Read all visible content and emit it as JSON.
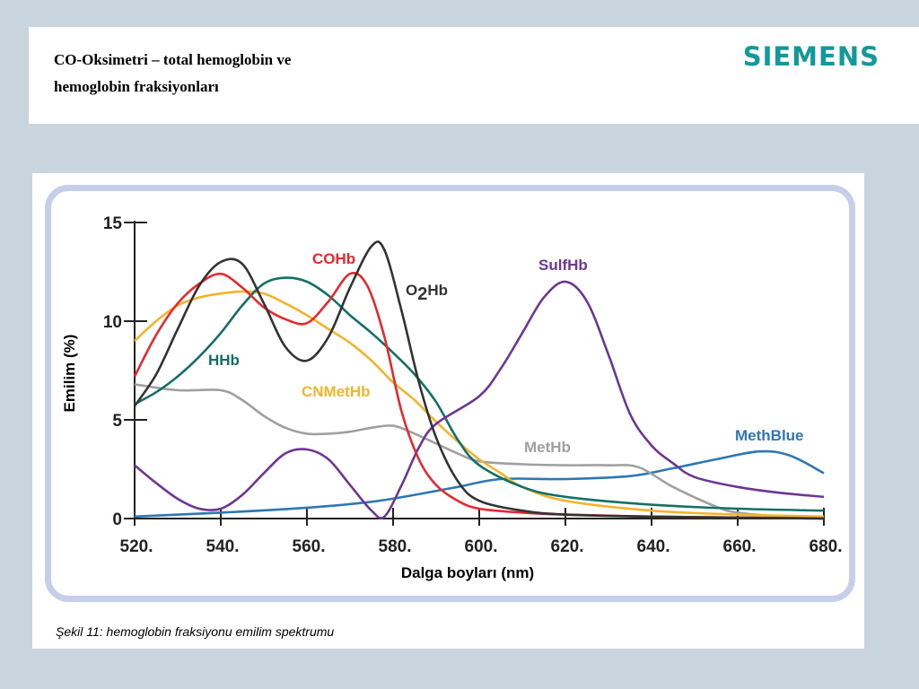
{
  "header": {
    "title_line1": "CO-Oksimetri – total hemoglobin ve",
    "title_line2": "hemoglobin fraksiyonları",
    "logo": "SIEMENS"
  },
  "caption": "Şekil 11: hemoglobin fraksiyonu emilim spektrumu",
  "colors": {
    "logo": "#12999a",
    "background": "#c9d5de",
    "frame": "#c5cfea"
  },
  "chart_data": {
    "type": "line",
    "title": "",
    "xlabel": "Dalga boyları (nm)",
    "ylabel": "Emilim (%)",
    "xlim": [
      520,
      680
    ],
    "ylim": [
      0,
      15
    ],
    "grid": false,
    "x_ticks": [
      520,
      540,
      560,
      580,
      600,
      620,
      640,
      660,
      680
    ],
    "x_tick_labels": [
      "520.",
      "540.",
      "560.",
      "580.",
      "600.",
      "620.",
      "640.",
      "660.",
      "680."
    ],
    "y_ticks": [
      0,
      5,
      10,
      15
    ],
    "y_tick_labels": [
      "0",
      "5",
      "10",
      "15"
    ],
    "series": [
      {
        "name": "COHb",
        "color": "#e8282c",
        "x": [
          520,
          525,
          530,
          535,
          540,
          545,
          550,
          555,
          560,
          565,
          570,
          574,
          578,
          582,
          586,
          590,
          595,
          600,
          610,
          620,
          640,
          660,
          680
        ],
        "y": [
          7.2,
          9.3,
          10.9,
          11.9,
          12.4,
          11.7,
          10.7,
          10.1,
          9.9,
          11.0,
          12.4,
          11.8,
          9.2,
          5.4,
          3.0,
          1.7,
          0.9,
          0.5,
          0.3,
          0.2,
          0.1,
          0.05,
          0
        ]
      },
      {
        "name": "O2Hb",
        "color": "#333333",
        "x": [
          520,
          525,
          530,
          535,
          540,
          545,
          550,
          555,
          560,
          565,
          570,
          575,
          578,
          582,
          586,
          590,
          595,
          600,
          610,
          620,
          640,
          660,
          680
        ],
        "y": [
          5.7,
          7.3,
          9.6,
          11.8,
          13.0,
          12.9,
          10.9,
          8.7,
          8.0,
          9.2,
          11.7,
          13.8,
          13.6,
          10.5,
          6.9,
          4.1,
          1.9,
          0.9,
          0.4,
          0.2,
          0.1,
          0.05,
          0
        ]
      },
      {
        "name": "HHb",
        "color": "#137068",
        "x": [
          520,
          525,
          530,
          535,
          540,
          545,
          550,
          555,
          560,
          565,
          570,
          575,
          580,
          585,
          590,
          595,
          600,
          610,
          620,
          640,
          660,
          680
        ],
        "y": [
          5.8,
          6.4,
          7.2,
          8.2,
          9.4,
          10.8,
          11.9,
          12.2,
          12.0,
          11.3,
          10.3,
          9.4,
          8.4,
          7.3,
          5.9,
          4.0,
          2.7,
          1.6,
          1.1,
          0.7,
          0.5,
          0.4
        ]
      },
      {
        "name": "CNMetHb",
        "color": "#f3b42b",
        "x": [
          520,
          525,
          530,
          535,
          540,
          545,
          550,
          555,
          560,
          565,
          570,
          575,
          580,
          585,
          590,
          595,
          600,
          605,
          610,
          620,
          640,
          660,
          680
        ],
        "y": [
          9.0,
          10.0,
          10.8,
          11.2,
          11.4,
          11.5,
          11.4,
          10.9,
          10.3,
          9.6,
          8.9,
          8.0,
          6.9,
          6.0,
          4.9,
          3.9,
          3.0,
          2.3,
          1.6,
          0.9,
          0.4,
          0.2,
          0.1
        ]
      },
      {
        "name": "MetHb",
        "color": "#a0a0a0",
        "x": [
          520,
          530,
          540,
          545,
          550,
          555,
          560,
          565,
          570,
          575,
          580,
          585,
          590,
          595,
          600,
          610,
          620,
          630,
          637,
          645,
          655,
          660,
          670,
          680
        ],
        "y": [
          6.8,
          6.5,
          6.5,
          6.0,
          5.2,
          4.6,
          4.3,
          4.3,
          4.4,
          4.6,
          4.7,
          4.3,
          3.8,
          3.3,
          2.9,
          2.75,
          2.7,
          2.7,
          2.6,
          1.6,
          0.6,
          0.3,
          0.1,
          0
        ]
      },
      {
        "name": "SulfHb",
        "color": "#6e3595",
        "x": [
          520,
          525,
          530,
          535,
          540,
          545,
          550,
          555,
          560,
          565,
          570,
          575,
          578,
          582,
          586,
          590,
          600,
          605,
          610,
          615,
          620,
          625,
          630,
          635,
          640,
          645,
          650,
          660,
          670,
          680
        ],
        "y": [
          2.7,
          1.8,
          1.0,
          0.5,
          0.5,
          1.2,
          2.3,
          3.3,
          3.5,
          3.0,
          1.7,
          0.4,
          0.1,
          1.7,
          3.6,
          4.8,
          6.2,
          7.6,
          9.4,
          11.2,
          12.0,
          11.0,
          8.3,
          5.3,
          3.7,
          2.8,
          2.1,
          1.6,
          1.3,
          1.1
        ]
      },
      {
        "name": "MethBlue",
        "color": "#2c77b4",
        "x": [
          520,
          540,
          560,
          575,
          585,
          595,
          605,
          620,
          635,
          645,
          655,
          665,
          672,
          680
        ],
        "y": [
          0.1,
          0.3,
          0.55,
          0.85,
          1.2,
          1.6,
          2.0,
          2.0,
          2.15,
          2.55,
          3.0,
          3.4,
          3.2,
          2.3
        ]
      }
    ],
    "series_labels": [
      "COHb",
      "O2Hb",
      "HHb",
      "CNMetHb",
      "MetHb",
      "SulfHb",
      "MethBlue"
    ]
  }
}
